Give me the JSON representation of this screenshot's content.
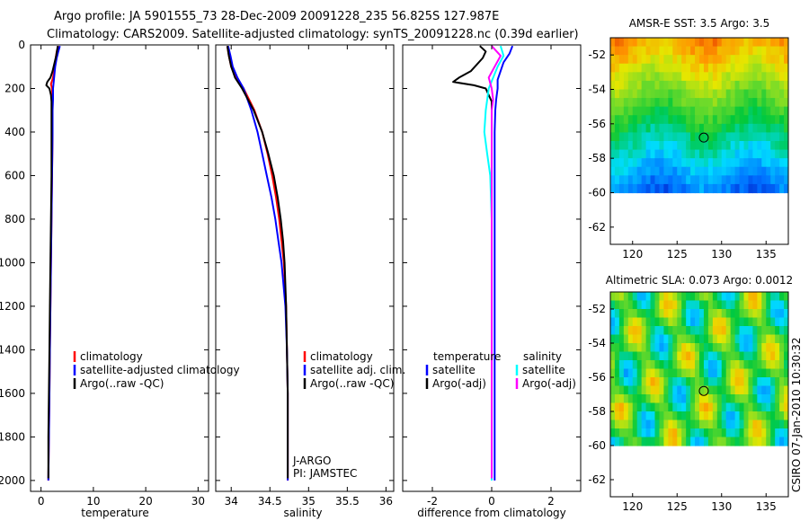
{
  "header": {
    "line1": "Argo profile: JA 5901555_73 28-Dec-2009 20091228_235 56.825S 127.987E",
    "line2": "Climatology: CARS2009. Satellite-adjusted climatology: synTS_20091228.nc (0.39d earlier)"
  },
  "side_stamp": "CSIRO 07-Jan-2010 10:30:32",
  "colors": {
    "climatology": "#ff0000",
    "satellite": "#0000ff",
    "argo": "#000000",
    "sal_satellite": "#00ffff",
    "sal_argo": "#ff00ff"
  },
  "chart_data": [
    {
      "type": "line",
      "title": "",
      "xlabel": "temperature",
      "ylabel": "",
      "xlim": [
        -2,
        32
      ],
      "ylim": [
        2050,
        0
      ],
      "xticks": [
        "0",
        "10",
        "20",
        "30"
      ],
      "yticks": [
        "0",
        "200",
        "400",
        "600",
        "800",
        "1000",
        "1200",
        "1400",
        "1600",
        "1800",
        "2000"
      ],
      "legend": [
        "climatology",
        "satellite-adjusted climatology",
        "Argo(..raw -QC)"
      ],
      "series": [
        {
          "name": "climatology",
          "color": "red",
          "depth": [
            5,
            30,
            60,
            100,
            150,
            180,
            200,
            250,
            300,
            400,
            600,
            800,
            1000,
            1200,
            1400,
            1600,
            1800,
            2000
          ],
          "values": [
            3.3,
            3.0,
            2.8,
            2.6,
            2.3,
            1.9,
            2.1,
            2.2,
            2.2,
            2.2,
            2.1,
            2.0,
            1.9,
            1.8,
            1.7,
            1.6,
            1.5,
            1.4
          ]
        },
        {
          "name": "satellite-adjusted climatology",
          "color": "blue",
          "depth": [
            5,
            30,
            60,
            100,
            150,
            200,
            250,
            300,
            400,
            600,
            800,
            1000,
            1200,
            1400,
            1600,
            1800,
            2000
          ],
          "values": [
            3.6,
            3.3,
            3.0,
            2.7,
            2.5,
            2.3,
            2.3,
            2.2,
            2.2,
            2.1,
            2.0,
            1.9,
            1.8,
            1.7,
            1.6,
            1.5,
            1.4
          ]
        },
        {
          "name": "Argo(..raw -QC)",
          "color": "black",
          "depth": [
            5,
            20,
            50,
            80,
            120,
            150,
            170,
            185,
            200,
            230,
            260,
            300,
            400,
            600,
            800,
            1000,
            1200,
            1400,
            1600,
            1800,
            1990
          ],
          "values": [
            3.2,
            3.1,
            2.9,
            2.6,
            2.2,
            1.8,
            1.2,
            1.0,
            1.6,
            1.9,
            2.0,
            2.0,
            2.0,
            2.0,
            1.9,
            1.8,
            1.7,
            1.6,
            1.5,
            1.4,
            1.4
          ]
        }
      ]
    },
    {
      "type": "line",
      "xlabel": "salinity",
      "xlim": [
        33.8,
        36.1
      ],
      "ylim": [
        2050,
        0
      ],
      "xticks": [
        "34",
        "34.5",
        "35",
        "35.5",
        "36"
      ],
      "legend": [
        "climatology",
        "satellite adj. clim.",
        "Argo(..raw -QC)"
      ],
      "annotation": [
        "J-ARGO",
        "PI: JAMSTEC"
      ],
      "series": [
        {
          "name": "climatology",
          "color": "red",
          "depth": [
            5,
            50,
            100,
            150,
            200,
            300,
            400,
            500,
            600,
            700,
            800,
            900,
            1000,
            1200,
            1400,
            1600,
            1800,
            2000
          ],
          "values": [
            33.95,
            33.97,
            34.0,
            34.06,
            34.16,
            34.3,
            34.4,
            34.47,
            34.53,
            34.58,
            34.62,
            34.65,
            34.68,
            34.71,
            34.72,
            34.73,
            34.73,
            34.73
          ]
        },
        {
          "name": "satellite adj. clim.",
          "color": "blue",
          "depth": [
            5,
            50,
            100,
            150,
            200,
            300,
            400,
            500,
            600,
            700,
            800,
            900,
            1000,
            1200,
            1400,
            1600,
            1800,
            2000
          ],
          "values": [
            33.96,
            33.99,
            34.02,
            34.08,
            34.16,
            34.26,
            34.34,
            34.4,
            34.46,
            34.52,
            34.57,
            34.61,
            34.65,
            34.7,
            34.72,
            34.73,
            34.73,
            34.73
          ]
        },
        {
          "name": "Argo(..raw -QC)",
          "color": "black",
          "depth": [
            5,
            50,
            100,
            150,
            200,
            300,
            400,
            500,
            600,
            700,
            800,
            900,
            1000,
            1200,
            1400,
            1600,
            1800,
            1990
          ],
          "values": [
            33.95,
            33.97,
            34.0,
            34.05,
            34.14,
            34.29,
            34.4,
            34.48,
            34.55,
            34.6,
            34.64,
            34.67,
            34.69,
            34.71,
            34.72,
            34.73,
            34.73,
            34.73
          ]
        }
      ]
    },
    {
      "type": "line",
      "xlabel": "difference from climatology",
      "xlim": [
        -3.0,
        3.0
      ],
      "ylim": [
        2050,
        0
      ],
      "xticks": [
        "-2",
        "0",
        "2"
      ],
      "legend_left_title": "temperature",
      "legend_right_title": "salinity",
      "legend": [
        "satellite",
        "Argo(-adj)",
        "satellite",
        "Argo(-adj)"
      ],
      "series": [
        {
          "name": "temperature satellite",
          "color": "blue",
          "depth": [
            5,
            40,
            80,
            120,
            160,
            200,
            250,
            300,
            400,
            600,
            800,
            1000,
            1200,
            1400,
            1600,
            1800,
            2000
          ],
          "values": [
            0.7,
            0.6,
            0.4,
            0.3,
            0.2,
            0.2,
            0.15,
            0.12,
            0.1,
            0.1,
            0.1,
            0.1,
            0.1,
            0.1,
            0.1,
            0.1,
            0.1
          ]
        },
        {
          "name": "temperature Argo(-adj)",
          "color": "black",
          "depth": [
            5,
            30,
            60,
            90,
            120,
            150,
            170,
            185,
            200,
            230,
            260,
            300,
            400,
            600,
            1000,
            1400,
            1800,
            1990
          ],
          "values": [
            -0.4,
            -0.2,
            -0.3,
            -0.5,
            -0.7,
            -1.1,
            -1.3,
            -0.6,
            -0.2,
            -0.1,
            0.0,
            0.0,
            0.0,
            0.0,
            0.0,
            0.0,
            0.0,
            0.0
          ]
        },
        {
          "name": "salinity satellite",
          "color": "cyan",
          "depth": [
            5,
            50,
            100,
            200,
            300,
            400,
            500,
            600,
            800,
            1000,
            1200,
            1400,
            1600,
            1800,
            2000
          ],
          "values": [
            0.3,
            0.4,
            0.2,
            -0.1,
            -0.2,
            -0.25,
            -0.15,
            -0.05,
            0.0,
            0.0,
            0.0,
            0.0,
            0.0,
            0.0,
            0.0
          ]
        },
        {
          "name": "salinity Argo(-adj)",
          "color": "magenta",
          "depth": [
            5,
            50,
            100,
            150,
            200,
            250,
            300,
            400,
            600,
            800,
            1000,
            1200,
            1400,
            1600,
            1800,
            1990
          ],
          "values": [
            0.0,
            0.3,
            0.1,
            -0.1,
            0.0,
            0.05,
            0.0,
            0.0,
            0.0,
            0.0,
            0.0,
            0.0,
            0.0,
            0.0,
            0.0,
            0.0
          ]
        }
      ]
    },
    {
      "type": "heatmap",
      "title": "AMSR-E SST: 3.5 Argo: 3.5",
      "xlim": [
        117.5,
        137.5
      ],
      "ylim": [
        -63,
        -51
      ],
      "xticks": [
        "120",
        "125",
        "130",
        "135"
      ],
      "yticks": [
        "-52",
        "-54",
        "-56",
        "-58",
        "-60",
        "-62"
      ],
      "marker": {
        "lon": 128.0,
        "lat": -56.8
      },
      "data_limit_lat": -60
    },
    {
      "type": "heatmap",
      "title": "Altimetric SLA: 0.073 Argo: 0.0012",
      "xlim": [
        117.5,
        137.5
      ],
      "ylim": [
        -63,
        -51
      ],
      "xticks": [
        "120",
        "125",
        "130",
        "135"
      ],
      "yticks": [
        "-52",
        "-54",
        "-56",
        "-58",
        "-60",
        "-62"
      ],
      "marker": {
        "lon": 128.0,
        "lat": -56.8
      },
      "data_limit_lat": -60
    }
  ]
}
